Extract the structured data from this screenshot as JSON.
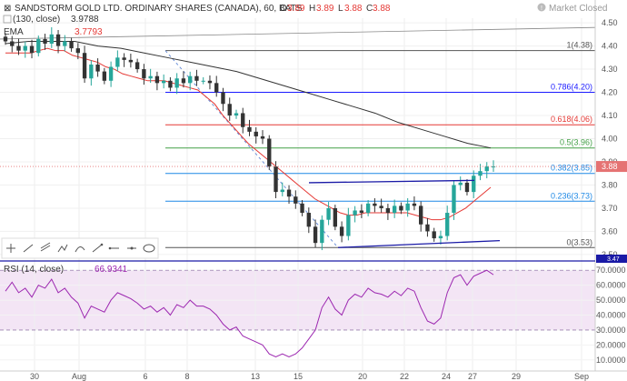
{
  "header": {
    "symbol_title": "SANDSTORM GOLD LTD. ORDINARY SHARES (CANADA), 60, BATS",
    "ohlc": {
      "o_label": "O",
      "o": "3.89",
      "h_label": "H",
      "h": "3.89",
      "l_label": "L",
      "l": "3.88",
      "c_label": "C",
      "c": "3.88"
    },
    "market_status": "Market Closed",
    "overlays": [
      {
        "label": "(130, close)",
        "value": "3.9788",
        "color": "#333333"
      },
      {
        "label": "EMA",
        "value": "3.7793",
        "color": "#e53935"
      }
    ],
    "rsi_label": "RSI (14, close)",
    "rsi_value": "66.9341"
  },
  "colors": {
    "up": "#26a69a",
    "down": "#333333",
    "ema": "#e53935",
    "sma": "#333333",
    "channel": "#1a1aa6",
    "rsi_line": "#9c27b0",
    "rsi_band": "#f3e5f5",
    "price_tag": "#e57373",
    "blue_tag": "#1a1aa6"
  },
  "toolbar": {
    "icons": [
      "crosshair-icon",
      "trendline-icon",
      "pitchfork-icon",
      "path-icon",
      "brush-icon",
      "measure-icon",
      "horizontal-ray-icon",
      "text-icon",
      "ellipse-icon"
    ]
  },
  "chart_data": [
    {
      "type": "candlestick",
      "title": "SANDSTORM GOLD LTD. ORDINARY SHARES (CANADA), 60, BATS",
      "x_ticks": [
        "30",
        "Aug",
        "6",
        "8",
        "13",
        "15",
        "20",
        "22",
        "24",
        "27",
        "29",
        "Sep"
      ],
      "ylim": [
        3.48,
        4.52
      ],
      "y_ticks": [
        "4.50",
        "4.40",
        "4.30",
        "4.20",
        "4.10",
        "4.00",
        "3.90",
        "3.80",
        "3.70",
        "3.60",
        "3.50"
      ],
      "last_price": "3.88",
      "blue_price_tag": "3.47",
      "fibonacci": [
        {
          "ratio": "1",
          "price": 4.38,
          "label": "1(4.38)",
          "color": "#555555"
        },
        {
          "ratio": "0.786",
          "price": 4.2,
          "label": "0.786(4.20)",
          "color": "#1a1aff"
        },
        {
          "ratio": "0.618",
          "price": 4.06,
          "label": "0.618(4.06)",
          "color": "#e53935"
        },
        {
          "ratio": "0.5",
          "price": 3.96,
          "label": "0.5(3.96)",
          "color": "#43a047"
        },
        {
          "ratio": "0.382",
          "price": 3.85,
          "label": "0.382(3.85)",
          "color": "#1e88e5"
        },
        {
          "ratio": "0.236",
          "price": 3.73,
          "label": "0.236(3.73)",
          "color": "#1e88e5"
        },
        {
          "ratio": "0",
          "price": 3.53,
          "label": "0(3.53)",
          "color": "#555555"
        }
      ],
      "closes": [
        4.42,
        4.4,
        4.38,
        4.4,
        4.37,
        4.43,
        4.41,
        4.45,
        4.4,
        4.42,
        4.39,
        4.37,
        4.26,
        4.32,
        4.29,
        4.25,
        4.31,
        4.35,
        4.34,
        4.33,
        4.3,
        4.26,
        4.27,
        4.24,
        4.25,
        4.22,
        4.26,
        4.24,
        4.27,
        4.25,
        4.25,
        4.24,
        4.2,
        4.15,
        4.1,
        4.11,
        4.05,
        4.03,
        4.01,
        4.0,
        3.88,
        3.77,
        3.78,
        3.75,
        3.72,
        3.68,
        3.62,
        3.55,
        3.65,
        3.7,
        3.62,
        3.58,
        3.67,
        3.69,
        3.68,
        3.72,
        3.71,
        3.7,
        3.68,
        3.71,
        3.69,
        3.72,
        3.71,
        3.63,
        3.6,
        3.57,
        3.58,
        3.68,
        3.8,
        3.81,
        3.77,
        3.84,
        3.86,
        3.88,
        3.88
      ],
      "ema": [
        4.37,
        4.37,
        4.37,
        4.37,
        4.38,
        4.39,
        4.38,
        4.38,
        4.36,
        4.35,
        4.34,
        4.33,
        4.31,
        4.3,
        4.28,
        4.27,
        4.26,
        4.25,
        4.25,
        4.25,
        4.24,
        4.23,
        4.22,
        4.21,
        4.18,
        4.15,
        4.1,
        4.06,
        4.02,
        3.98,
        3.95,
        3.92,
        3.89,
        3.86,
        3.83,
        3.8,
        3.77,
        3.74,
        3.72,
        3.7,
        3.68,
        3.67,
        3.67,
        3.68,
        3.68,
        3.68,
        3.68,
        3.68,
        3.68,
        3.67,
        3.66,
        3.65,
        3.65,
        3.66,
        3.68,
        3.7,
        3.73,
        3.76,
        3.79
      ],
      "sma": [
        4.41,
        4.42,
        4.42,
        4.42,
        4.4,
        4.39,
        4.37,
        4.35,
        4.33,
        4.31,
        4.29,
        4.26,
        4.23,
        4.2,
        4.17,
        4.14,
        4.11,
        4.07,
        4.04,
        4.01,
        3.98,
        3.96
      ],
      "channel": {
        "upper": [
          3.81,
          3.82
        ],
        "lower": [
          3.53,
          3.56
        ]
      },
      "rsi": {
        "ylim": [
          5,
          75
        ],
        "y_ticks": [
          "70.0000",
          "60.0000",
          "50.0000",
          "40.0000",
          "30.0000",
          "20.0000",
          "10.0000"
        ],
        "band": [
          30,
          70
        ],
        "values": [
          56,
          62,
          55,
          58,
          52,
          60,
          58,
          64,
          55,
          58,
          52,
          48,
          38,
          46,
          44,
          42,
          50,
          55,
          53,
          51,
          48,
          44,
          46,
          42,
          45,
          40,
          47,
          45,
          50,
          46,
          46,
          44,
          40,
          34,
          30,
          32,
          26,
          24,
          22,
          20,
          14,
          12,
          14,
          12,
          14,
          18,
          24,
          30,
          45,
          52,
          44,
          40,
          50,
          54,
          52,
          58,
          55,
          54,
          52,
          56,
          53,
          58,
          56,
          45,
          36,
          34,
          38,
          55,
          65,
          67,
          60,
          66,
          68,
          70,
          67
        ]
      }
    }
  ]
}
